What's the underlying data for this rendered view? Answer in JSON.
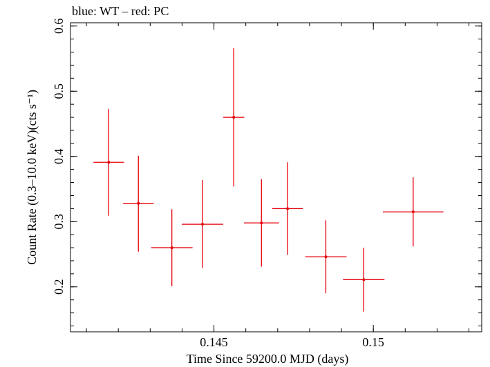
{
  "chart_data": {
    "type": "scatter",
    "title": "blue: WT – red: PC",
    "xlabel": "Time Since 59200.0 MJD (days)",
    "ylabel": "Count Rate (0.3–10.0 keV)(cts s⁻¹)",
    "xlim": [
      0.1405,
      0.1534
    ],
    "ylim": [
      0.131,
      0.605
    ],
    "x_ticks": [
      {
        "value": 0.145,
        "label": "0.145"
      },
      {
        "value": 0.15,
        "label": "0.15"
      }
    ],
    "y_ticks": [
      {
        "value": 0.2,
        "label": "0.2"
      },
      {
        "value": 0.3,
        "label": "0.3"
      },
      {
        "value": 0.4,
        "label": "0.4"
      },
      {
        "value": 0.5,
        "label": "0.5"
      },
      {
        "value": 0.6,
        "label": "0.6"
      }
    ],
    "series": [
      {
        "color": "#e8000b",
        "points": [
          {
            "x": 0.1417,
            "y": 0.391,
            "xerr": 0.00048,
            "yerr_lo": 0.082,
            "yerr_hi": 0.082
          },
          {
            "x": 0.14263,
            "y": 0.328,
            "xerr": 0.00048,
            "yerr_lo": 0.074,
            "yerr_hi": 0.073
          },
          {
            "x": 0.14368,
            "y": 0.26,
            "xerr": 0.00065,
            "yerr_lo": 0.059,
            "yerr_hi": 0.059
          },
          {
            "x": 0.14464,
            "y": 0.296,
            "xerr": 0.00065,
            "yerr_lo": 0.067,
            "yerr_hi": 0.068
          },
          {
            "x": 0.14562,
            "y": 0.46,
            "xerr": 0.00033,
            "yerr_lo": 0.106,
            "yerr_hi": 0.106
          },
          {
            "x": 0.14649,
            "y": 0.298,
            "xerr": 0.00055,
            "yerr_lo": 0.067,
            "yerr_hi": 0.067
          },
          {
            "x": 0.14731,
            "y": 0.32,
            "xerr": 0.00048,
            "yerr_lo": 0.071,
            "yerr_hi": 0.071
          },
          {
            "x": 0.14851,
            "y": 0.246,
            "xerr": 0.00065,
            "yerr_lo": 0.056,
            "yerr_hi": 0.056
          },
          {
            "x": 0.1497,
            "y": 0.211,
            "xerr": 0.00065,
            "yerr_lo": 0.049,
            "yerr_hi": 0.049
          },
          {
            "x": 0.15125,
            "y": 0.315,
            "xerr": 0.00095,
            "yerr_lo": 0.053,
            "yerr_hi": 0.053
          }
        ]
      }
    ]
  }
}
